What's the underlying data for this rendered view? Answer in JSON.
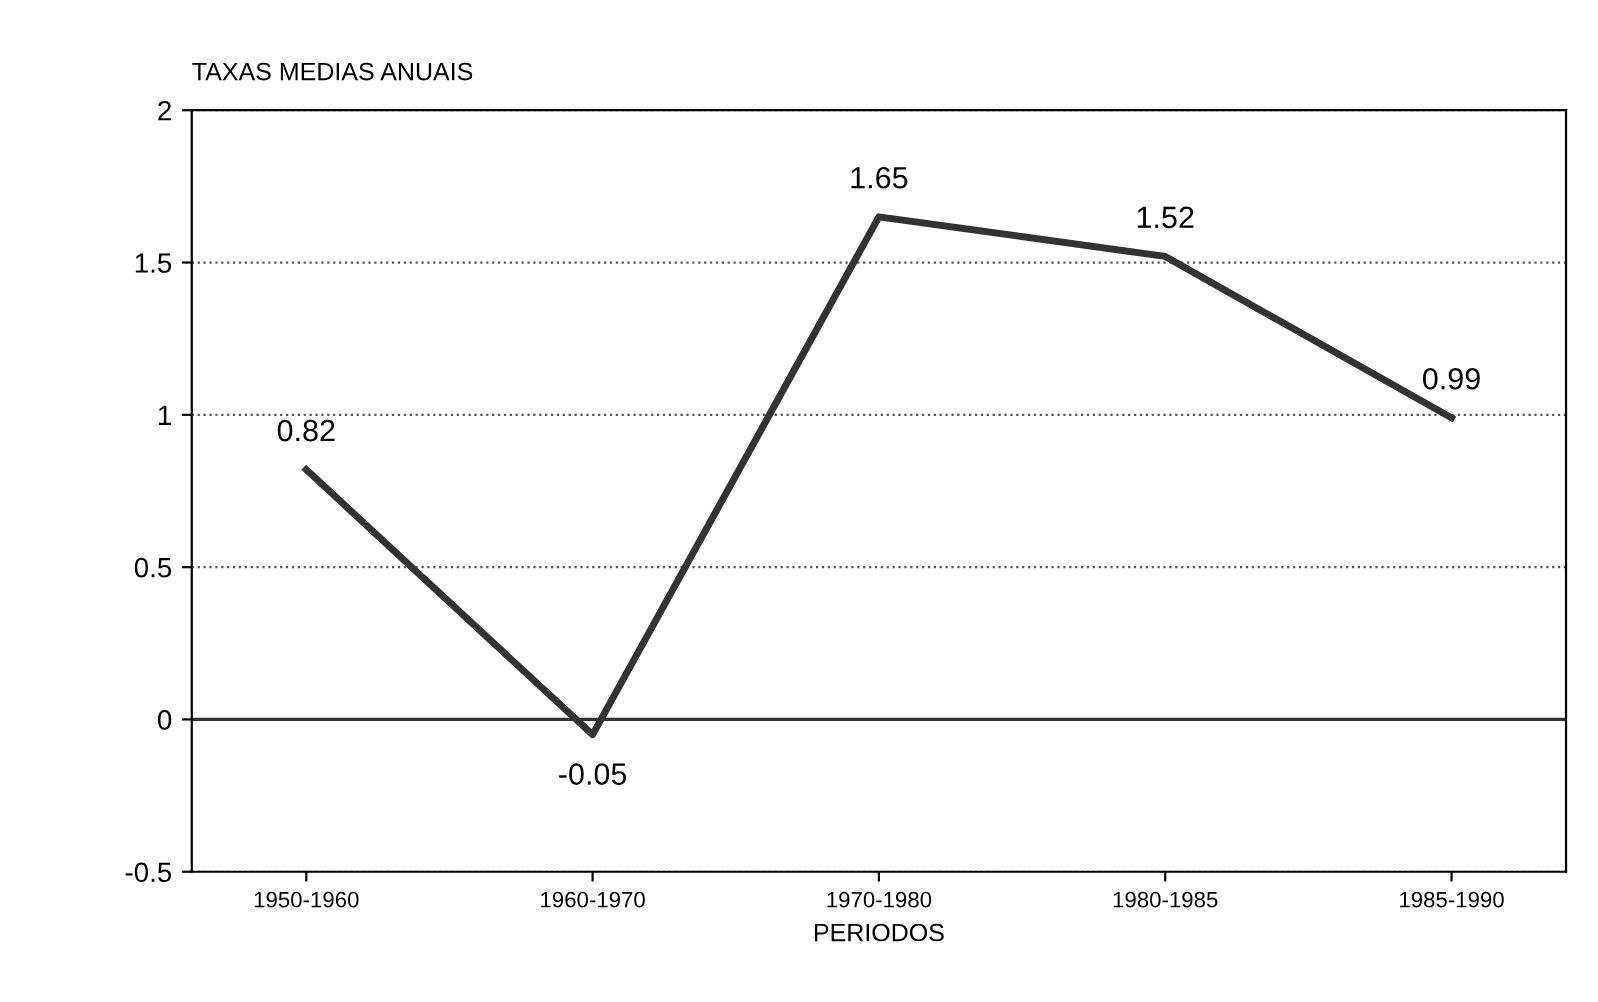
{
  "chart_data": {
    "type": "line",
    "ylabel": "TAXAS MEDIAS ANUAIS",
    "xlabel": "PERIODOS",
    "categories": [
      "1950-1960",
      "1960-1970",
      "1970-1980",
      "1980-1985",
      "1985-1990"
    ],
    "series": [
      {
        "color": "#333333",
        "values": [
          0.82,
          -0.05,
          1.65,
          1.52,
          0.99
        ]
      }
    ],
    "ylim": [
      -0.5,
      2
    ],
    "yticks": [
      {
        "value": -0.5,
        "label": "-0.5"
      },
      0,
      {
        "value": 0.5,
        "label": "0.5"
      },
      1,
      {
        "value": 1.5,
        "label": "1.5"
      },
      2
    ],
    "grid": "y",
    "line_style": "solid",
    "marker": "none",
    "data_labels": true,
    "legend": false,
    "ref_lines": [
      {
        "axis": "y",
        "value": 0,
        "color": "#333333",
        "line_style": "solid"
      }
    ]
  }
}
